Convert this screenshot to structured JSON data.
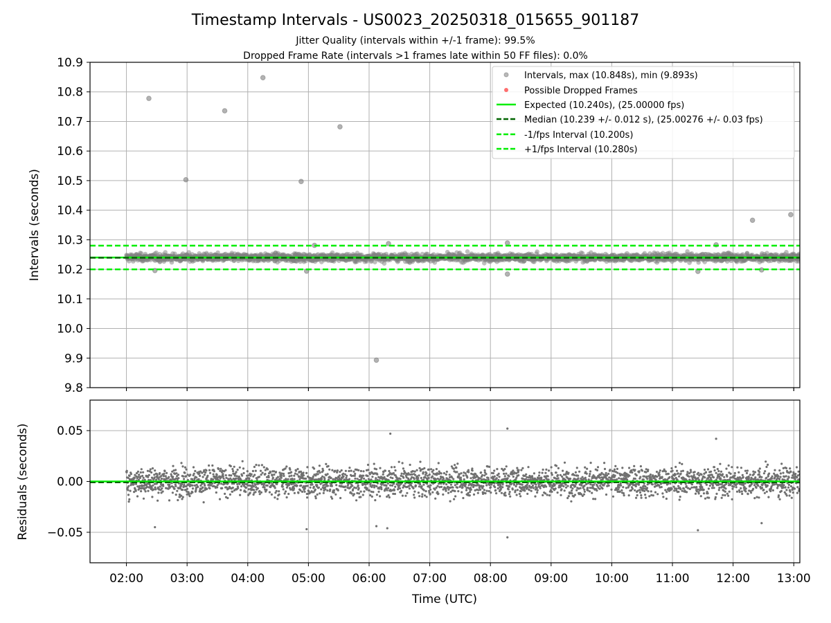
{
  "title": "Timestamp Intervals - US0023_20250318_015655_901187",
  "subtitle_1": "Jitter Quality (intervals within +/-1 frame): 99.5%",
  "subtitle_2": "Dropped Frame Rate (intervals >1 frames late within 50 FF files): 0.0%",
  "chart_data": [
    {
      "type": "scatter",
      "panel": "intervals",
      "ylabel": "Intervals (seconds)",
      "xlabel": "",
      "xlim_hours": [
        1.4,
        13.1
      ],
      "ylim": [
        9.8,
        10.9
      ],
      "y_ticks": [
        "9.8",
        "9.9",
        "10.0",
        "10.1",
        "10.2",
        "10.3",
        "10.4",
        "10.5",
        "10.6",
        "10.7",
        "10.8",
        "10.9"
      ],
      "x_ticks": [
        "02:00",
        "03:00",
        "04:00",
        "05:00",
        "06:00",
        "07:00",
        "08:00",
        "09:00",
        "10:00",
        "11:00",
        "12:00",
        "13:00"
      ],
      "grid": true,
      "legend_position": "top-right",
      "colors": {
        "points": "#808080",
        "dropped": "#ff4a4a",
        "expected": "#00ee00",
        "median": "#006400",
        "bounds": "#00ee00"
      },
      "legend": [
        {
          "label": "Intervals, max (10.848s), min (9.893s)",
          "style": "point-gray"
        },
        {
          "label": "Possible Dropped Frames",
          "style": "point-red"
        },
        {
          "label": "Expected (10.240s), (25.00000 fps)",
          "style": "line-green"
        },
        {
          "label": "Median (10.239 +/- 0.012 s), (25.00276 +/- 0.03 fps)",
          "style": "dash-darkgreen"
        },
        {
          "label": "-1/fps Interval (10.200s)",
          "style": "dash-green"
        },
        {
          "label": "+1/fps Interval (10.280s)",
          "style": "dash-green"
        }
      ],
      "reference_lines": {
        "expected": 10.24,
        "median": 10.239,
        "lower": 10.2,
        "upper": 10.28
      },
      "bulk_band": {
        "x_start": 2.0,
        "x_end": 13.1,
        "center": 10.24,
        "spread": 0.012
      },
      "outliers": [
        {
          "x": 2.37,
          "y": 10.778
        },
        {
          "x": 2.98,
          "y": 10.503
        },
        {
          "x": 3.62,
          "y": 10.736
        },
        {
          "x": 4.25,
          "y": 10.848
        },
        {
          "x": 4.88,
          "y": 10.497
        },
        {
          "x": 5.52,
          "y": 10.682
        },
        {
          "x": 6.12,
          "y": 9.893
        },
        {
          "x": 12.32,
          "y": 10.366
        },
        {
          "x": 12.95,
          "y": 10.385
        },
        {
          "x": 8.28,
          "y": 10.289
        },
        {
          "x": 8.28,
          "y": 10.184
        },
        {
          "x": 6.32,
          "y": 10.287
        },
        {
          "x": 5.1,
          "y": 10.281
        },
        {
          "x": 11.72,
          "y": 10.283
        },
        {
          "x": 4.97,
          "y": 10.194
        },
        {
          "x": 2.47,
          "y": 10.196
        },
        {
          "x": 11.42,
          "y": 10.193
        },
        {
          "x": 12.47,
          "y": 10.198
        }
      ]
    },
    {
      "type": "scatter",
      "panel": "residuals",
      "ylabel": "Residuals (seconds)",
      "xlabel": "Time (UTC)",
      "xlim_hours": [
        1.4,
        13.1
      ],
      "ylim": [
        -0.08,
        0.08
      ],
      "y_ticks": [
        {
          "value": 0.05,
          "label": "0.05"
        },
        {
          "value": 0.0,
          "label": "0.00"
        },
        {
          "value": -0.05,
          "label": "−0.05"
        }
      ],
      "x_ticks": [
        "02:00",
        "03:00",
        "04:00",
        "05:00",
        "06:00",
        "07:00",
        "08:00",
        "09:00",
        "10:00",
        "11:00",
        "12:00",
        "13:00"
      ],
      "grid": true,
      "colors": {
        "points": "#707070",
        "zero_line": "#00ee00",
        "median_offset": "#006400"
      },
      "median_offset": -0.001,
      "bulk_band": {
        "x_start": 2.0,
        "x_end": 13.1,
        "spread": 0.012
      },
      "outliers": [
        {
          "x": 6.35,
          "y": 0.047
        },
        {
          "x": 8.28,
          "y": 0.052
        },
        {
          "x": 8.28,
          "y": -0.055
        },
        {
          "x": 4.97,
          "y": -0.047
        },
        {
          "x": 11.42,
          "y": -0.048
        },
        {
          "x": 2.47,
          "y": -0.045
        },
        {
          "x": 12.47,
          "y": -0.041
        },
        {
          "x": 11.72,
          "y": 0.042
        },
        {
          "x": 6.12,
          "y": -0.044
        },
        {
          "x": 6.3,
          "y": -0.046
        }
      ]
    }
  ]
}
